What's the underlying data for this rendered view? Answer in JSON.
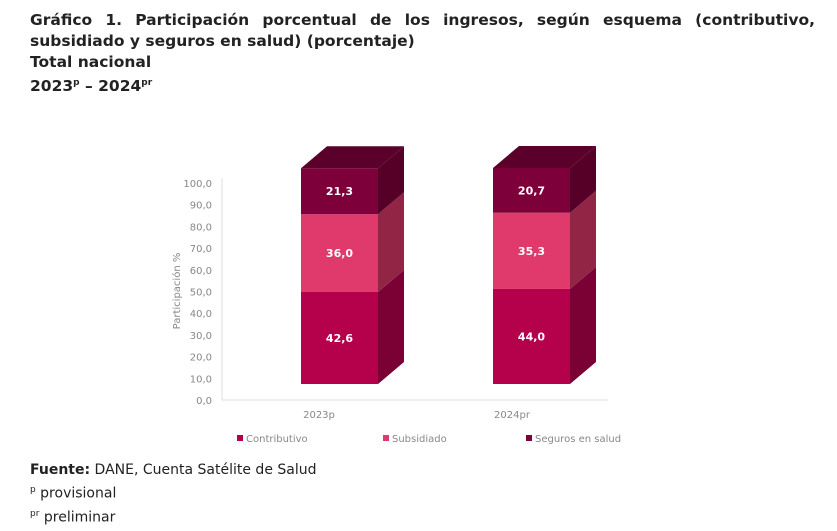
{
  "title": {
    "line1": "Gráfico 1. Participación porcentual de los ingresos, según esquema (contributivo, subsidiado y seguros en salud) (porcentaje)",
    "line2": "Total nacional",
    "line3_a": "2023",
    "line3_a_sup": "p",
    "line3_sep": " – 2024",
    "line3_b_sup": "pr"
  },
  "chart_data": {
    "type": "bar",
    "stacked": true,
    "categories": [
      "2023p",
      "2024pr"
    ],
    "series": [
      {
        "name": "Contributivo",
        "values": [
          42.6,
          44.0
        ],
        "color": "#b5004b",
        "labels": [
          "42,6",
          "44,0"
        ]
      },
      {
        "name": "Subsidiado",
        "values": [
          36.0,
          35.3
        ],
        "color": "#e0396b",
        "labels": [
          "36,0",
          "35,3"
        ]
      },
      {
        "name": "Seguros en salud",
        "values": [
          21.3,
          20.7
        ],
        "color": "#7e003b",
        "labels": [
          "21,3",
          "20,7"
        ]
      }
    ],
    "ylabel": "Participación %",
    "ylim": [
      0,
      100
    ],
    "yticks": [
      "0,0",
      "10,0",
      "20,0",
      "30,0",
      "40,0",
      "50,0",
      "60,0",
      "70,0",
      "80,0",
      "90,0",
      "100,0"
    ],
    "legend": "bottom",
    "grid": false
  },
  "footer": {
    "source_label": "Fuente:",
    "source_text": " DANE, Cuenta Satélite de Salud",
    "note1_sup": "p",
    "note1": " provisional",
    "note2_sup": "pr",
    "note2": " preliminar"
  }
}
